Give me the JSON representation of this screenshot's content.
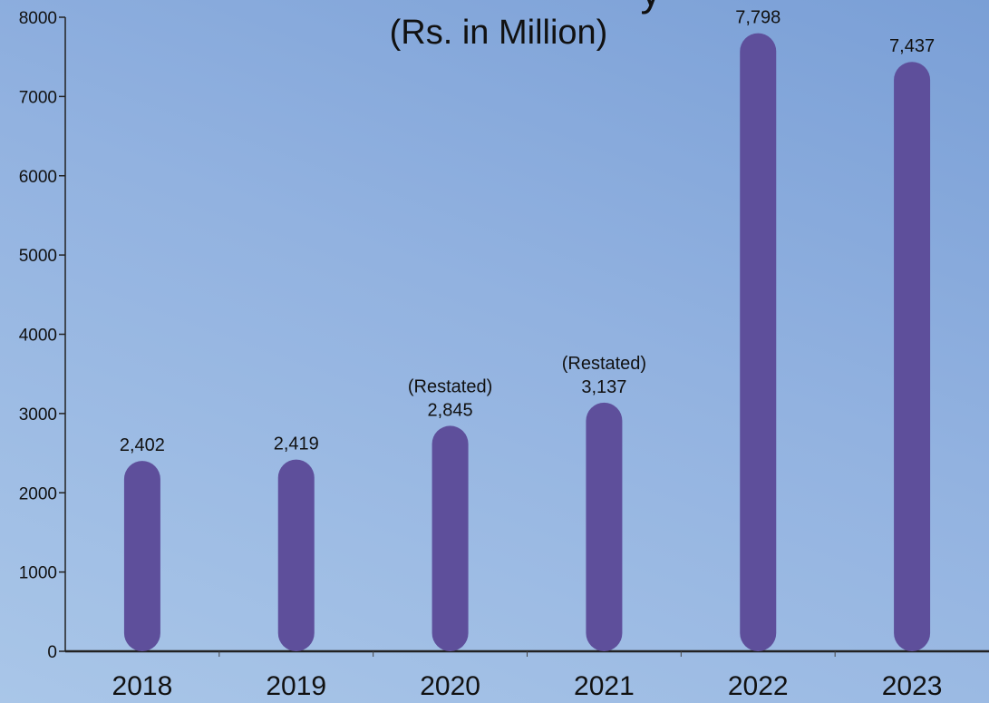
{
  "chart_data": {
    "type": "bar",
    "title_partial": "y",
    "subtitle": "(Rs. in Million)",
    "categories": [
      "2018",
      "2019",
      "2020",
      "2021",
      "2022",
      "2023"
    ],
    "values": [
      2402,
      2419,
      2845,
      3137,
      7798,
      7437
    ],
    "value_labels": [
      "2,402",
      "2,419",
      "2,845",
      "3,137",
      "7,798",
      "7,437"
    ],
    "notes": [
      "",
      "",
      "(Restated)",
      "(Restated)",
      "",
      ""
    ],
    "yticks": [
      "0",
      "1000",
      "2000",
      "3000",
      "4000",
      "5000",
      "6000",
      "7000",
      "8000"
    ],
    "ylim": [
      0,
      8000
    ],
    "bar_color": "#5e4f9b",
    "grid": false,
    "xlabel": "",
    "ylabel": ""
  }
}
